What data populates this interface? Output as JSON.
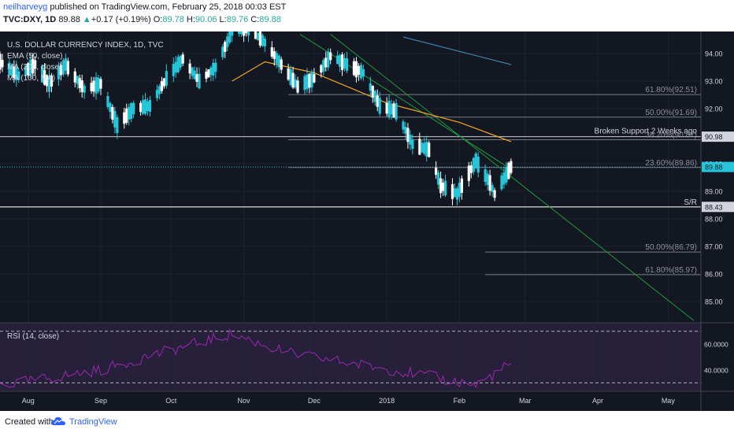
{
  "header": {
    "author": "neilharveyg",
    "published": " published on TradingView.com, February 25, 2018 00:03 EST",
    "symbol": "TVC:DXY, 1D",
    "last": "89.88",
    "arrow": "▲",
    "change": "+0.17 (+0.19%)",
    "o_label": "O:",
    "o_val": "89.78",
    "h_label": "H:",
    "h_val": "90.06",
    "l_label": "L:",
    "l_val": "89.76",
    "c_label": "C:",
    "c_val": "89.88"
  },
  "footer": {
    "created": "Created with",
    "brand": "TradingView"
  },
  "colors": {
    "background": "#131722",
    "rsi_band": "#27203a",
    "up": "#26c6da",
    "down": "#ffffff",
    "ma50": "#f5a623",
    "ma100": "#3d7ea6",
    "channel": "#1e9c3a",
    "rsi_line": "#9c27b0",
    "price_line": "#26c6da"
  },
  "chart_data": {
    "type": "candlestick",
    "legend": [
      "U.S. DOLLAR CURRENCY INDEX, 1D, TVC",
      "EMA (50, close)",
      "MA (200, close)",
      "MA (100, MA)"
    ],
    "price_ticks": [
      "94.00",
      "93.00",
      "92.00",
      "91.00",
      "90.00",
      "89.00",
      "88.00",
      "87.00",
      "86.00",
      "85.00"
    ],
    "price_range": [
      84.25,
      94.8
    ],
    "rsi_ticks": [
      "60.0000",
      "40.0000"
    ],
    "rsi_range": [
      24,
      76
    ],
    "time_ticks": [
      "Aug",
      "Sep",
      "Oct",
      "Nov",
      "Dec",
      "2018",
      "Feb",
      "Mar",
      "Apr",
      "May"
    ],
    "x_range": [
      "2017-07-20",
      "2018-05-15"
    ],
    "price_labels": {
      "last": "89.88",
      "broken_support": "90.98",
      "sr": "88.43"
    },
    "candles_sample": [
      {
        "date": "2017-07-20",
        "o": 93.9,
        "h": 94.1,
        "l": 93.5,
        "c": 93.7
      },
      {
        "date": "2017-08-15",
        "o": 93.4,
        "h": 93.9,
        "l": 92.9,
        "c": 93.7
      },
      {
        "date": "2017-09-08",
        "o": 91.8,
        "h": 91.9,
        "l": 91.0,
        "c": 91.4
      },
      {
        "date": "2017-10-27",
        "o": 94.4,
        "h": 95.0,
        "l": 94.2,
        "c": 94.8
      },
      {
        "date": "2017-11-27",
        "o": 92.9,
        "h": 93.0,
        "l": 92.6,
        "c": 92.8
      },
      {
        "date": "2018-01-25",
        "o": 88.9,
        "h": 89.2,
        "l": 88.3,
        "c": 88.7
      },
      {
        "date": "2018-02-16",
        "o": 88.6,
        "h": 89.1,
        "l": 88.3,
        "c": 88.9
      },
      {
        "date": "2018-02-23",
        "o": 89.78,
        "h": 90.06,
        "l": 89.76,
        "c": 89.88
      }
    ],
    "ema50_points": [
      {
        "date": "2017-10-27",
        "y": 93.0
      },
      {
        "date": "2017-11-10",
        "y": 93.7
      },
      {
        "date": "2017-12-01",
        "y": 93.3
      },
      {
        "date": "2018-01-01",
        "y": 92.2
      },
      {
        "date": "2018-02-01",
        "y": 91.5
      },
      {
        "date": "2018-02-23",
        "y": 90.8
      }
    ],
    "ma100_points": [
      {
        "date": "2018-01-08",
        "y": 94.6
      },
      {
        "date": "2018-02-23",
        "y": 93.6
      }
    ],
    "channel_upper": [
      {
        "date": "2017-11-25",
        "y": 94.7
      },
      {
        "date": "2018-02-23",
        "y": 89.8
      }
    ],
    "channel_lower": [
      {
        "date": "2017-12-08",
        "y": 94.7
      },
      {
        "date": "2018-05-12",
        "y": 84.3
      }
    ],
    "fib_upper": [
      {
        "label": "61.80%(92.51)",
        "y": 92.51
      },
      {
        "label": "50.00%(91.69)",
        "y": 91.69
      },
      {
        "label": "38.20%(90.87)",
        "y": 90.87
      },
      {
        "label": "23.60%(89.86)",
        "y": 89.86
      }
    ],
    "fib_lower": [
      {
        "label": "50.00%(86.79)",
        "y": 86.79
      },
      {
        "label": "61.80%(85.97)",
        "y": 85.97
      }
    ],
    "horizontal_levels": [
      {
        "label": "Broken Support 2 Weeks ago",
        "y": 90.98
      },
      {
        "label": "S/R",
        "y": 88.43
      }
    ],
    "last_price_line": 89.88,
    "rsi_title": "RSI (14, close)",
    "rsi_levels": [
      70,
      30
    ],
    "rsi_sample": [
      {
        "date": "2017-07-25",
        "y": 29
      },
      {
        "date": "2017-09-01",
        "y": 40
      },
      {
        "date": "2017-09-20",
        "y": 50
      },
      {
        "date": "2017-10-27",
        "y": 68
      },
      {
        "date": "2017-11-20",
        "y": 53
      },
      {
        "date": "2018-01-10",
        "y": 38
      },
      {
        "date": "2018-02-08",
        "y": 28
      },
      {
        "date": "2018-02-23",
        "y": 45
      }
    ]
  }
}
